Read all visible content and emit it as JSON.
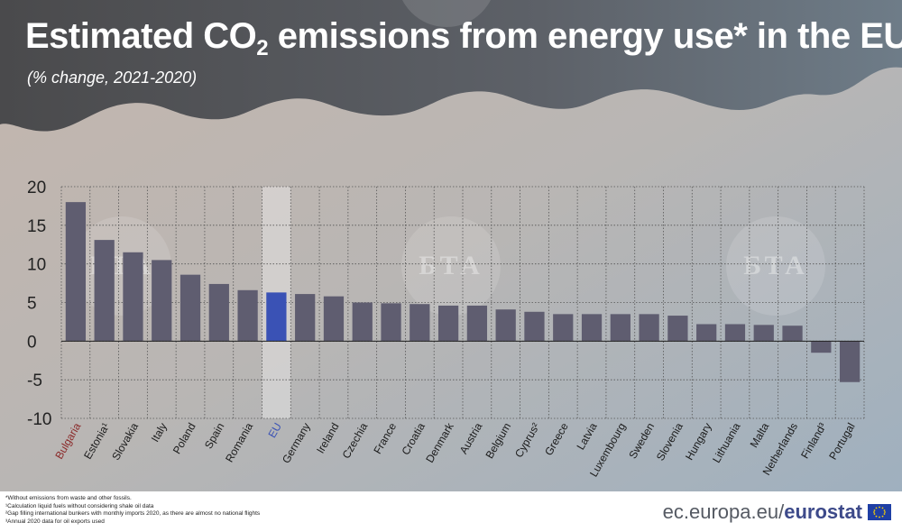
{
  "title": {
    "main": "Estimated CO",
    "sub": "2",
    "rest": " emissions from energy use* in the EU"
  },
  "subtitle": "(% change, 2021-2020)",
  "chart_data": {
    "type": "bar",
    "categories": [
      "Bulgaria",
      "Estonia¹",
      "Slovakia",
      "Italy",
      "Poland",
      "Spain",
      "Romania",
      "EU",
      "Germany",
      "Ireland",
      "Czechia",
      "France",
      "Croatia",
      "Denmark",
      "Austria",
      "Belgium",
      "Cyprus²",
      "Greece",
      "Latvia",
      "Luxembourg",
      "Sweden",
      "Slovenia",
      "Hungary",
      "Lithuania",
      "Malta",
      "Netherlands",
      "Finland³",
      "Portugal"
    ],
    "values": [
      18.0,
      13.1,
      11.5,
      10.5,
      8.6,
      7.4,
      6.6,
      6.3,
      6.1,
      5.8,
      5.0,
      4.9,
      4.8,
      4.6,
      4.6,
      4.1,
      3.8,
      3.5,
      3.5,
      3.5,
      3.5,
      3.3,
      2.2,
      2.2,
      2.1,
      2.0,
      -1.5,
      -5.3
    ],
    "ylim": [
      -10,
      20
    ],
    "yticks": [
      20,
      15,
      10,
      5,
      0,
      -5,
      -10
    ],
    "highlight": "EU",
    "bar_color": "#5f5d70",
    "highlight_color": "#3a52b5",
    "highlight_label_color": "#3a52b5",
    "first_label_color": "#8b2a2a",
    "grid": "dotted"
  },
  "footnotes": [
    "*Without emissions from waste and other fossils.",
    "¹Calculation liquid fuels without considering shale oil data",
    "²Gap filling international bunkers with monthly imports 2020, as there are almost no national flights",
    "³Annual 2020 data for oil exports used"
  ],
  "brand": {
    "site": "ec.europa.eu/",
    "name": "eurostat"
  },
  "watermark": "БТА"
}
